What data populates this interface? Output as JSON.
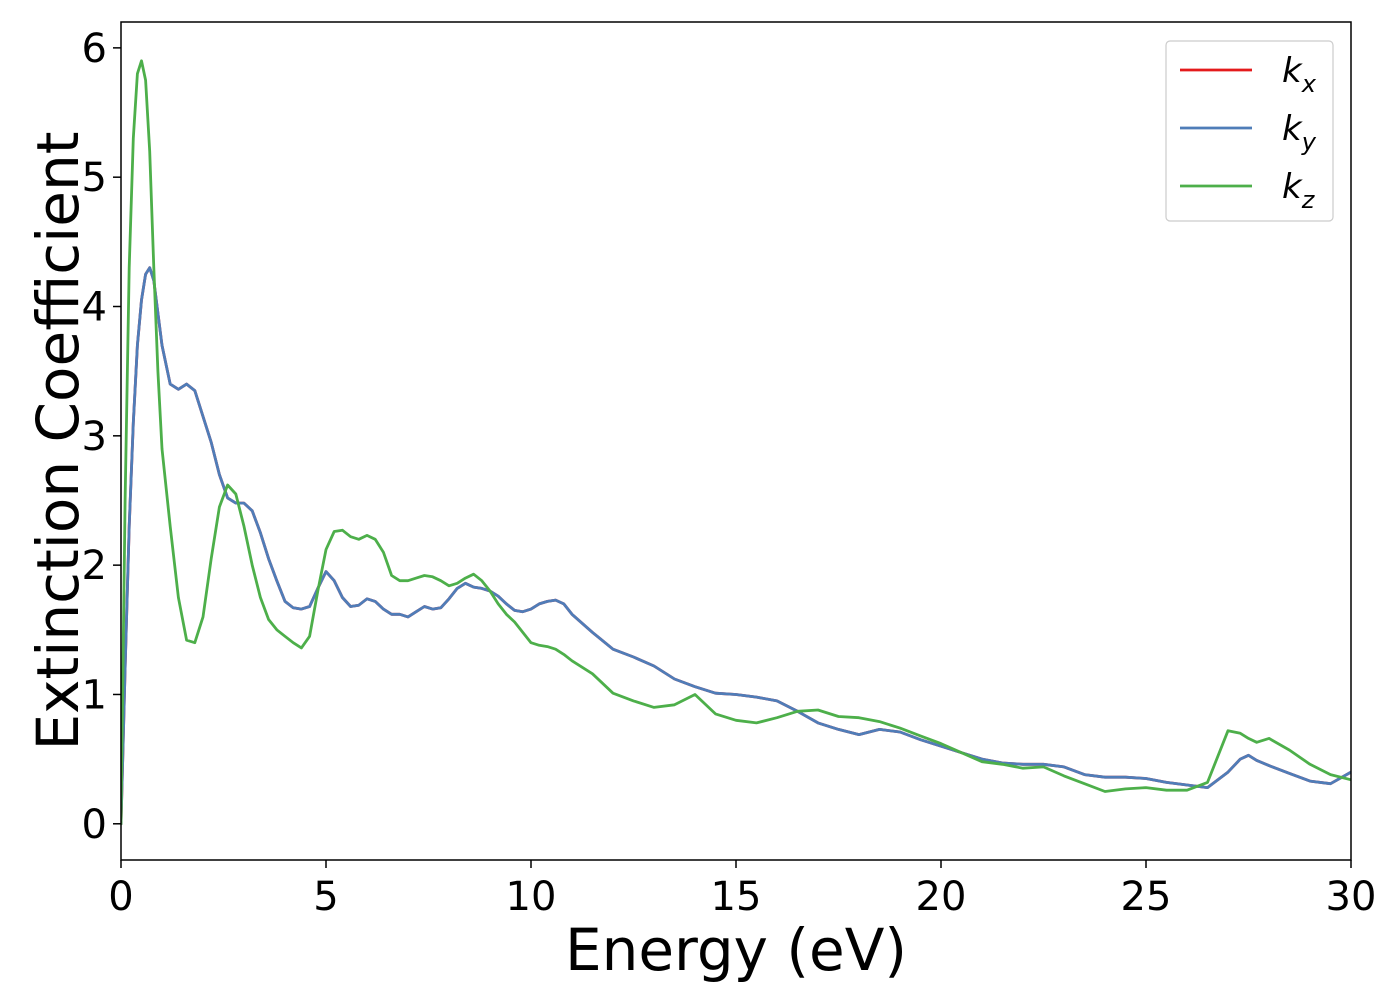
{
  "chart_data": {
    "type": "line",
    "title": "",
    "xlabel": "Energy (eV)",
    "ylabel": "Extinction Coefficient",
    "xlim": [
      0,
      30
    ],
    "ylim": [
      -0.28,
      6.2
    ],
    "xticks": [
      0,
      5,
      10,
      15,
      20,
      25,
      30
    ],
    "yticks": [
      0,
      1,
      2,
      3,
      4,
      5,
      6
    ],
    "grid": false,
    "legend_position": "top-right",
    "series": [
      {
        "name": "k_x",
        "label_base": "k",
        "label_sub": "x",
        "color": "#e41a1c",
        "x": [
          0,
          0.1,
          0.2,
          0.3,
          0.4,
          0.5,
          0.6,
          0.7,
          0.8,
          0.9,
          1.0,
          1.2,
          1.4,
          1.6,
          1.8,
          2.0,
          2.2,
          2.4,
          2.6,
          2.8,
          3.0,
          3.2,
          3.4,
          3.6,
          3.8,
          4.0,
          4.2,
          4.4,
          4.6,
          4.8,
          5.0,
          5.2,
          5.4,
          5.6,
          5.8,
          6.0,
          6.2,
          6.4,
          6.6,
          6.8,
          7.0,
          7.2,
          7.4,
          7.6,
          7.8,
          8.0,
          8.2,
          8.4,
          8.6,
          8.8,
          9.0,
          9.2,
          9.4,
          9.6,
          9.8,
          10.0,
          10.2,
          10.4,
          10.6,
          10.8,
          11.0,
          11.5,
          12.0,
          12.5,
          13.0,
          13.5,
          14.0,
          14.5,
          15.0,
          15.5,
          16.0,
          16.5,
          17.0,
          17.5,
          18.0,
          18.5,
          19.0,
          19.5,
          20.0,
          20.5,
          21.0,
          21.5,
          22.0,
          22.5,
          23.0,
          23.5,
          24.0,
          24.5,
          25.0,
          25.5,
          26.0,
          26.5,
          27.0,
          27.3,
          27.5,
          27.7,
          28.0,
          28.5,
          29.0,
          29.5,
          30.0
        ],
        "y": [
          0,
          1.2,
          2.3,
          3.1,
          3.7,
          4.05,
          4.25,
          4.3,
          4.2,
          3.95,
          3.7,
          3.4,
          3.36,
          3.4,
          3.35,
          3.15,
          2.95,
          2.7,
          2.52,
          2.48,
          2.48,
          2.42,
          2.25,
          2.05,
          1.88,
          1.72,
          1.67,
          1.66,
          1.68,
          1.82,
          1.95,
          1.88,
          1.75,
          1.68,
          1.69,
          1.74,
          1.72,
          1.66,
          1.62,
          1.62,
          1.6,
          1.64,
          1.68,
          1.66,
          1.67,
          1.74,
          1.82,
          1.86,
          1.83,
          1.82,
          1.8,
          1.76,
          1.7,
          1.65,
          1.64,
          1.66,
          1.7,
          1.72,
          1.73,
          1.7,
          1.62,
          1.48,
          1.35,
          1.29,
          1.22,
          1.12,
          1.06,
          1.01,
          1.0,
          0.98,
          0.95,
          0.87,
          0.78,
          0.73,
          0.69,
          0.73,
          0.71,
          0.65,
          0.6,
          0.55,
          0.5,
          0.47,
          0.46,
          0.46,
          0.44,
          0.38,
          0.36,
          0.36,
          0.35,
          0.32,
          0.3,
          0.28,
          0.4,
          0.5,
          0.53,
          0.49,
          0.45,
          0.39,
          0.33,
          0.31,
          0.4
        ]
      },
      {
        "name": "k_y",
        "label_base": "k",
        "label_sub": "y",
        "color": "#4f7db8",
        "x": [
          0,
          0.1,
          0.2,
          0.3,
          0.4,
          0.5,
          0.6,
          0.7,
          0.8,
          0.9,
          1.0,
          1.2,
          1.4,
          1.6,
          1.8,
          2.0,
          2.2,
          2.4,
          2.6,
          2.8,
          3.0,
          3.2,
          3.4,
          3.6,
          3.8,
          4.0,
          4.2,
          4.4,
          4.6,
          4.8,
          5.0,
          5.2,
          5.4,
          5.6,
          5.8,
          6.0,
          6.2,
          6.4,
          6.6,
          6.8,
          7.0,
          7.2,
          7.4,
          7.6,
          7.8,
          8.0,
          8.2,
          8.4,
          8.6,
          8.8,
          9.0,
          9.2,
          9.4,
          9.6,
          9.8,
          10.0,
          10.2,
          10.4,
          10.6,
          10.8,
          11.0,
          11.5,
          12.0,
          12.5,
          13.0,
          13.5,
          14.0,
          14.5,
          15.0,
          15.5,
          16.0,
          16.5,
          17.0,
          17.5,
          18.0,
          18.5,
          19.0,
          19.5,
          20.0,
          20.5,
          21.0,
          21.5,
          22.0,
          22.5,
          23.0,
          23.5,
          24.0,
          24.5,
          25.0,
          25.5,
          26.0,
          26.5,
          27.0,
          27.3,
          27.5,
          27.7,
          28.0,
          28.5,
          29.0,
          29.5,
          30.0
        ],
        "y": [
          0,
          1.2,
          2.3,
          3.1,
          3.7,
          4.05,
          4.25,
          4.3,
          4.2,
          3.95,
          3.7,
          3.4,
          3.36,
          3.4,
          3.35,
          3.15,
          2.95,
          2.7,
          2.52,
          2.48,
          2.48,
          2.42,
          2.25,
          2.05,
          1.88,
          1.72,
          1.67,
          1.66,
          1.68,
          1.82,
          1.95,
          1.88,
          1.75,
          1.68,
          1.69,
          1.74,
          1.72,
          1.66,
          1.62,
          1.62,
          1.6,
          1.64,
          1.68,
          1.66,
          1.67,
          1.74,
          1.82,
          1.86,
          1.83,
          1.82,
          1.8,
          1.76,
          1.7,
          1.65,
          1.64,
          1.66,
          1.7,
          1.72,
          1.73,
          1.7,
          1.62,
          1.48,
          1.35,
          1.29,
          1.22,
          1.12,
          1.06,
          1.01,
          1.0,
          0.98,
          0.95,
          0.87,
          0.78,
          0.73,
          0.69,
          0.73,
          0.71,
          0.65,
          0.6,
          0.55,
          0.5,
          0.47,
          0.46,
          0.46,
          0.44,
          0.38,
          0.36,
          0.36,
          0.35,
          0.32,
          0.3,
          0.28,
          0.4,
          0.5,
          0.53,
          0.49,
          0.45,
          0.39,
          0.33,
          0.31,
          0.4
        ]
      },
      {
        "name": "k_z",
        "label_base": "k",
        "label_sub": "z",
        "color": "#4daf4a",
        "x": [
          0,
          0.1,
          0.2,
          0.3,
          0.4,
          0.5,
          0.6,
          0.7,
          0.8,
          0.9,
          1.0,
          1.2,
          1.4,
          1.6,
          1.8,
          2.0,
          2.2,
          2.4,
          2.6,
          2.8,
          3.0,
          3.2,
          3.4,
          3.6,
          3.8,
          4.0,
          4.2,
          4.4,
          4.6,
          4.8,
          5.0,
          5.2,
          5.4,
          5.6,
          5.8,
          6.0,
          6.2,
          6.4,
          6.6,
          6.8,
          7.0,
          7.2,
          7.4,
          7.6,
          7.8,
          8.0,
          8.2,
          8.4,
          8.6,
          8.8,
          9.0,
          9.2,
          9.4,
          9.6,
          9.8,
          10.0,
          10.2,
          10.4,
          10.6,
          10.8,
          11.0,
          11.5,
          12.0,
          12.5,
          13.0,
          13.5,
          14.0,
          14.5,
          15.0,
          15.5,
          16.0,
          16.5,
          17.0,
          17.5,
          18.0,
          18.5,
          19.0,
          19.5,
          20.0,
          20.5,
          21.0,
          21.5,
          22.0,
          22.5,
          23.0,
          23.5,
          24.0,
          24.5,
          25.0,
          25.5,
          26.0,
          26.5,
          27.0,
          27.3,
          27.5,
          27.7,
          28.0,
          28.5,
          29.0,
          29.5,
          30.0
        ],
        "y": [
          0,
          2.5,
          4.3,
          5.3,
          5.8,
          5.9,
          5.75,
          5.2,
          4.3,
          3.5,
          2.9,
          2.3,
          1.75,
          1.42,
          1.4,
          1.6,
          2.05,
          2.45,
          2.62,
          2.55,
          2.3,
          2.0,
          1.75,
          1.58,
          1.5,
          1.45,
          1.4,
          1.36,
          1.45,
          1.8,
          2.12,
          2.26,
          2.27,
          2.22,
          2.2,
          2.23,
          2.2,
          2.1,
          1.92,
          1.88,
          1.88,
          1.9,
          1.92,
          1.91,
          1.88,
          1.84,
          1.86,
          1.9,
          1.93,
          1.88,
          1.8,
          1.7,
          1.62,
          1.56,
          1.48,
          1.4,
          1.38,
          1.37,
          1.35,
          1.31,
          1.26,
          1.16,
          1.01,
          0.95,
          0.9,
          0.92,
          1.0,
          0.85,
          0.8,
          0.78,
          0.82,
          0.87,
          0.88,
          0.83,
          0.82,
          0.79,
          0.74,
          0.68,
          0.62,
          0.55,
          0.48,
          0.46,
          0.43,
          0.44,
          0.37,
          0.31,
          0.25,
          0.27,
          0.28,
          0.26,
          0.26,
          0.32,
          0.72,
          0.7,
          0.66,
          0.63,
          0.66,
          0.57,
          0.46,
          0.38,
          0.34
        ]
      }
    ]
  }
}
